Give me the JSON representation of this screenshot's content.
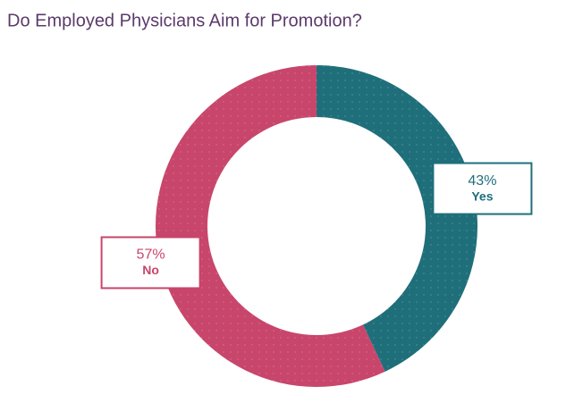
{
  "chart_data": {
    "type": "donut",
    "title": "Do Employed Physicians Aim for Promotion?",
    "categories": [
      "Yes",
      "No"
    ],
    "values": [
      43,
      57
    ],
    "value_labels": [
      "43%",
      "57%"
    ],
    "colors": [
      "#1f6f7b",
      "#c8466b"
    ]
  }
}
